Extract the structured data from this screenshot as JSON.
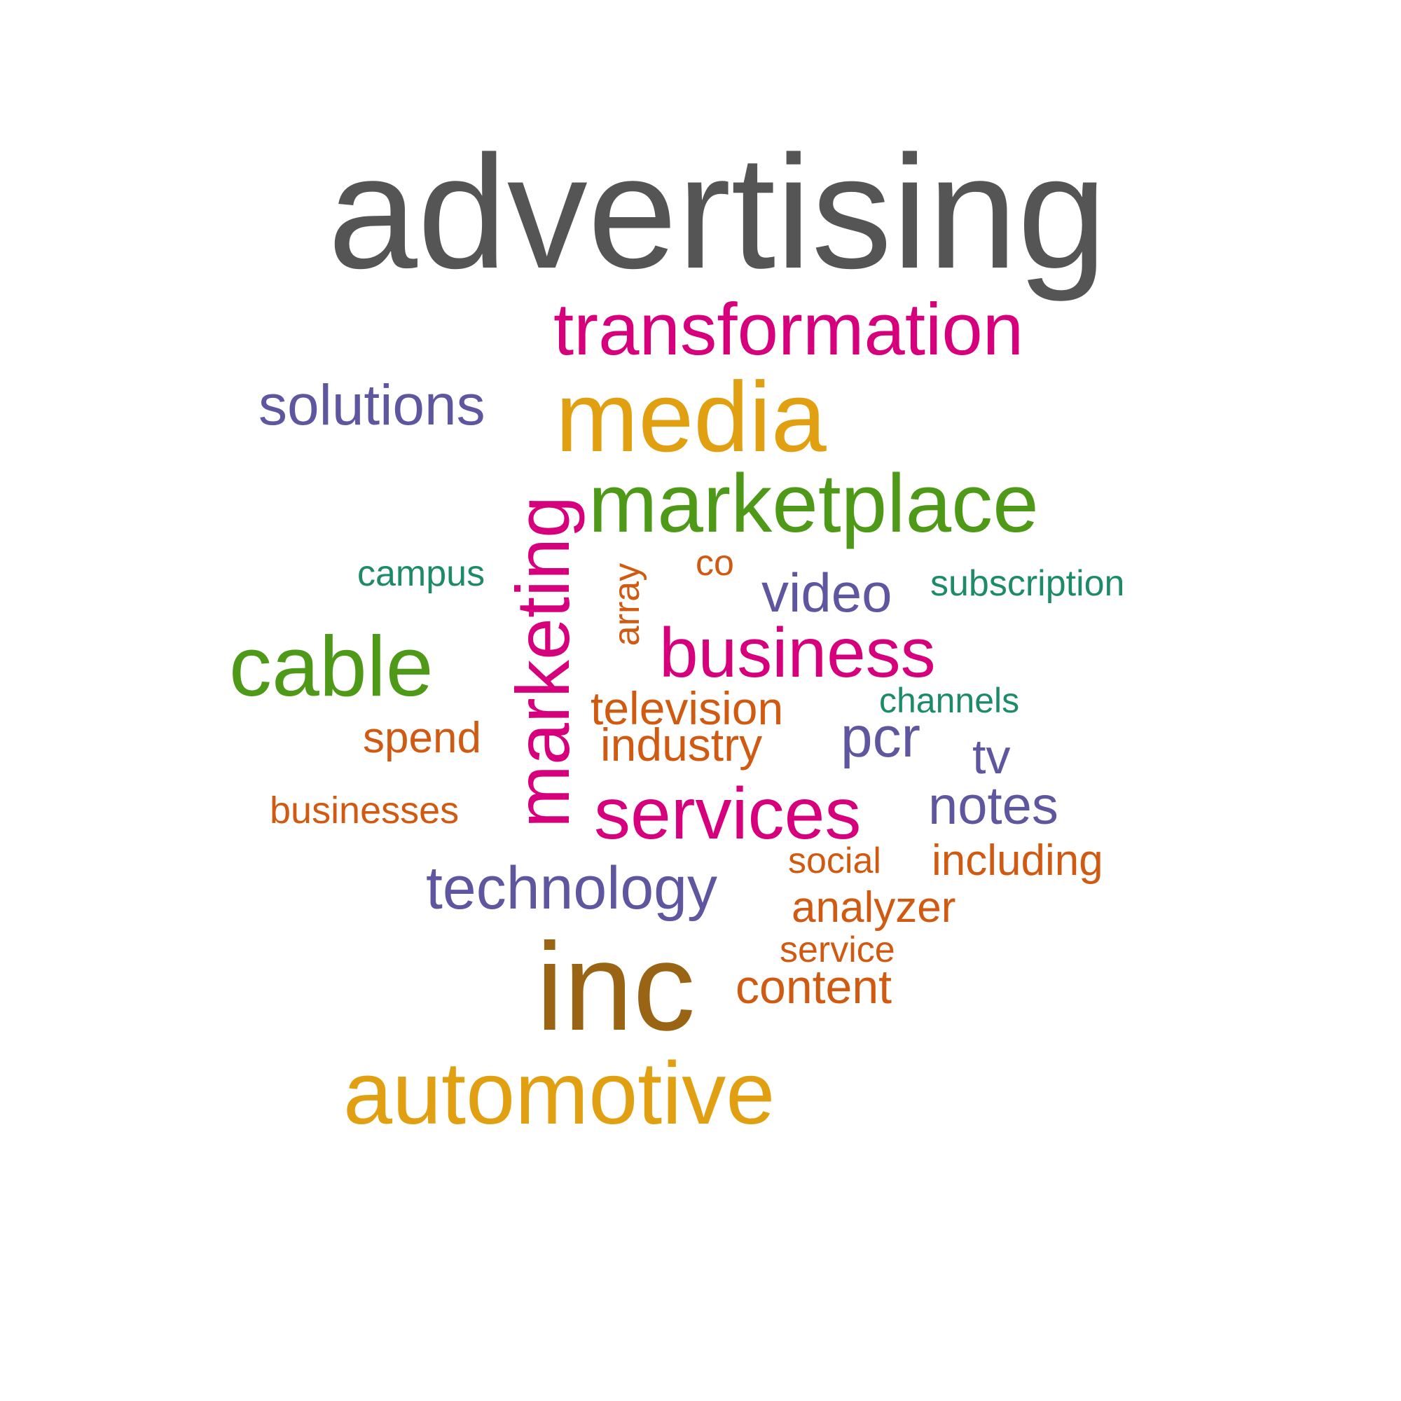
{
  "words": [
    {
      "text": "advertising",
      "color": "#555555",
      "weight": 10
    },
    {
      "text": "transformation",
      "color": "#d6007c",
      "weight": 5
    },
    {
      "text": "solutions",
      "color": "#5f56a0",
      "weight": 4
    },
    {
      "text": "media",
      "color": "#e0a012",
      "weight": 7
    },
    {
      "text": "marketplace",
      "color": "#4e9a18",
      "weight": 6
    },
    {
      "text": "marketing",
      "color": "#d6007c",
      "weight": 6,
      "orientation": "vertical"
    },
    {
      "text": "campus",
      "color": "#1d8a68",
      "weight": 2
    },
    {
      "text": "array",
      "color": "#d15a12",
      "weight": 2,
      "orientation": "vertical"
    },
    {
      "text": "co",
      "color": "#d15a12",
      "weight": 2
    },
    {
      "text": "video",
      "color": "#5f56a0",
      "weight": 4
    },
    {
      "text": "subscription",
      "color": "#1d8a68",
      "weight": 2
    },
    {
      "text": "cable",
      "color": "#4e9a18",
      "weight": 6
    },
    {
      "text": "business",
      "color": "#d6007c",
      "weight": 5
    },
    {
      "text": "television",
      "color": "#d15a12",
      "weight": 3
    },
    {
      "text": "channels",
      "color": "#1d8a68",
      "weight": 2
    },
    {
      "text": "spend",
      "color": "#d15a12",
      "weight": 3
    },
    {
      "text": "industry",
      "color": "#d15a12",
      "weight": 3
    },
    {
      "text": "pcr",
      "color": "#5f56a0",
      "weight": 4
    },
    {
      "text": "tv",
      "color": "#5f56a0",
      "weight": 4
    },
    {
      "text": "businesses",
      "color": "#d15a12",
      "weight": 2
    },
    {
      "text": "services",
      "color": "#d6007c",
      "weight": 5
    },
    {
      "text": "notes",
      "color": "#5f56a0",
      "weight": 4
    },
    {
      "text": "social",
      "color": "#d15a12",
      "weight": 2
    },
    {
      "text": "including",
      "color": "#d15a12",
      "weight": 3
    },
    {
      "text": "technology",
      "color": "#5f56a0",
      "weight": 5
    },
    {
      "text": "analyzer",
      "color": "#d15a12",
      "weight": 3
    },
    {
      "text": "service",
      "color": "#d15a12",
      "weight": 2
    },
    {
      "text": "inc",
      "color": "#996414",
      "weight": 9
    },
    {
      "text": "content",
      "color": "#d15a12",
      "weight": 3
    },
    {
      "text": "automotive",
      "color": "#e0a012",
      "weight": 7
    }
  ]
}
